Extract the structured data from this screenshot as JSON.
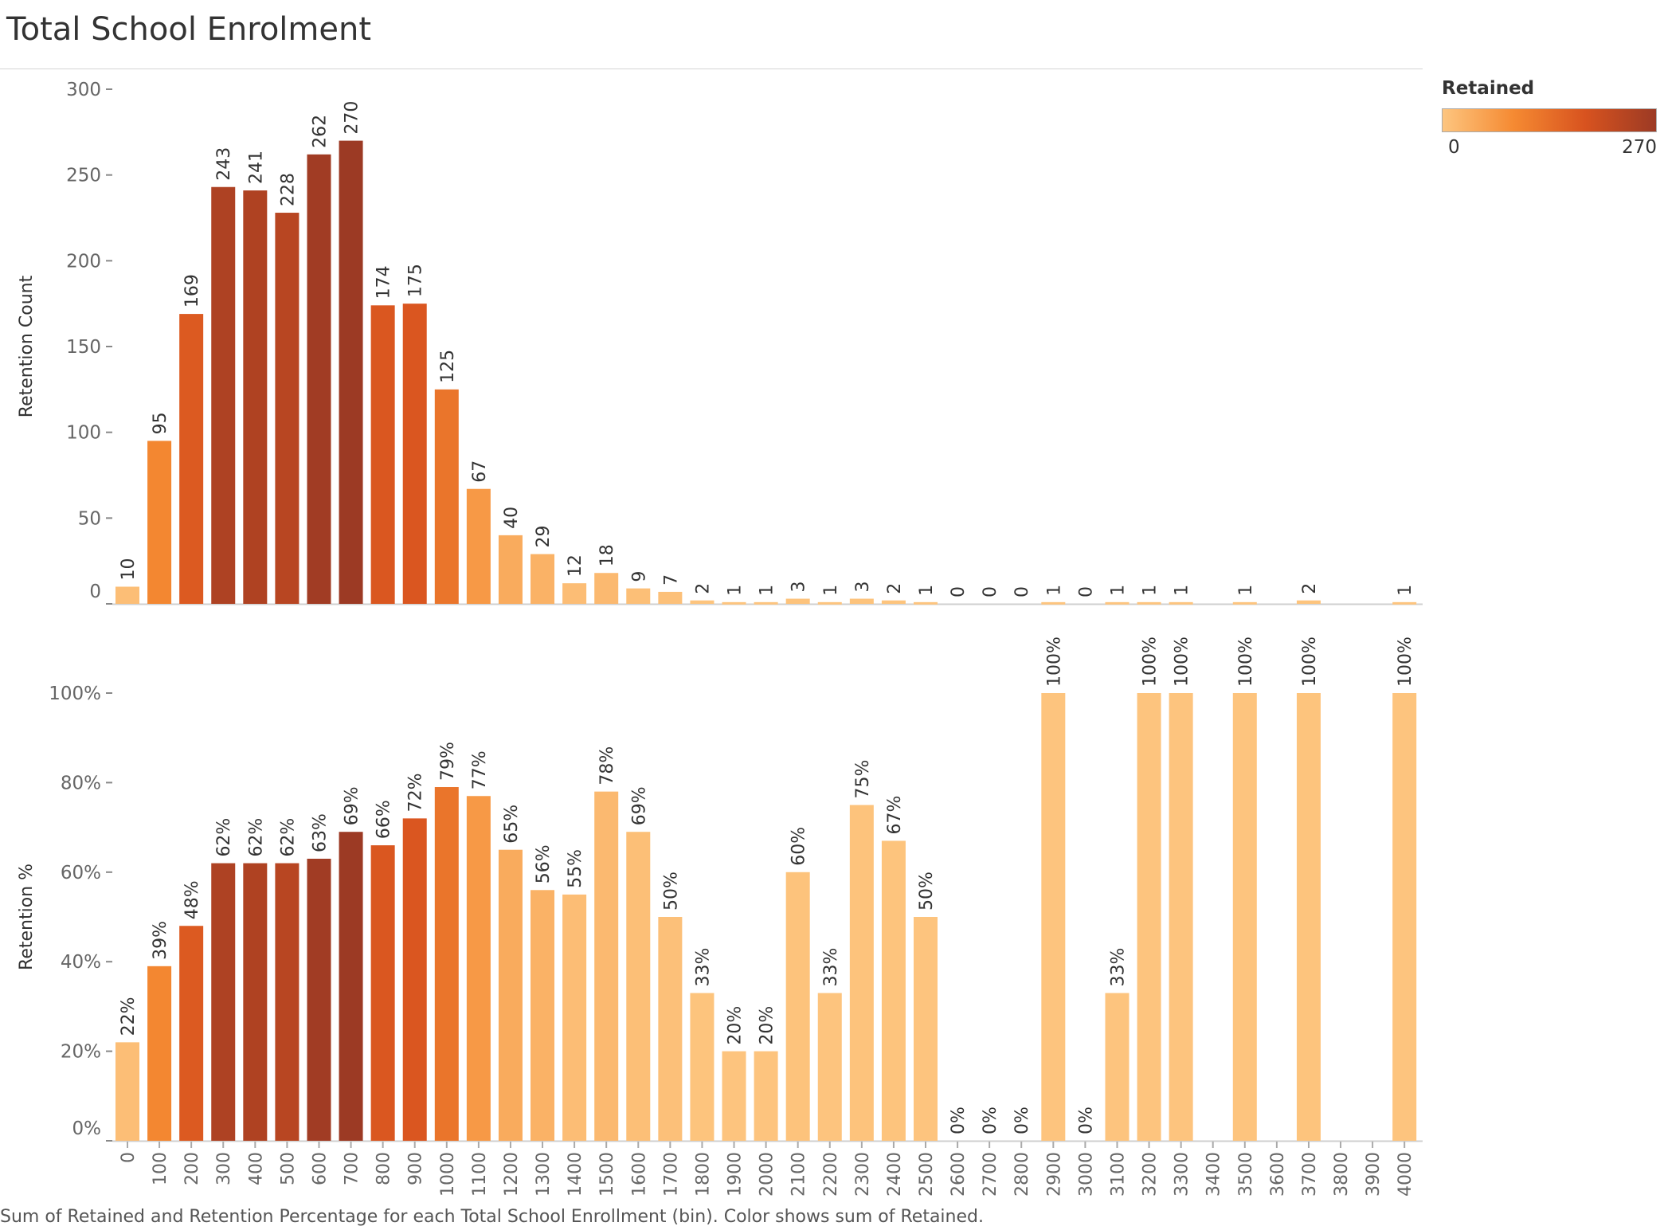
{
  "title": "Total School Enrolment",
  "caption": "Sum of Retained and Retention Percentage for each Total School Enrollment (bin).  Color shows sum of Retained.",
  "legend": {
    "title": "Retained",
    "min_label": "0",
    "max_label": "270",
    "colors": [
      "#fdc57f",
      "#f58a32",
      "#d8531f",
      "#9c3a24"
    ]
  },
  "chart_data": [
    {
      "type": "bar",
      "ylabel": "Retention Count",
      "ylim": [
        0,
        300
      ],
      "yticks": [
        0,
        50,
        100,
        150,
        200,
        250,
        300
      ],
      "ytick_labels": [
        "0",
        "50",
        "100",
        "150",
        "200",
        "250",
        "300"
      ],
      "categories": [
        "0",
        "100",
        "200",
        "300",
        "400",
        "500",
        "600",
        "700",
        "800",
        "900",
        "1000",
        "1100",
        "1200",
        "1300",
        "1400",
        "1500",
        "1600",
        "1700",
        "1800",
        "1900",
        "2000",
        "2100",
        "2200",
        "2300",
        "2400",
        "2500",
        "2600",
        "2700",
        "2800",
        "2900",
        "3000",
        "3100",
        "3200",
        "3300",
        "3400",
        "3500",
        "3600",
        "3700",
        "3800",
        "3900",
        "4000"
      ],
      "values": [
        10,
        95,
        169,
        243,
        241,
        228,
        262,
        270,
        174,
        175,
        125,
        67,
        40,
        29,
        12,
        18,
        9,
        7,
        2,
        1,
        1,
        3,
        1,
        3,
        2,
        1,
        0,
        0,
        0,
        1,
        0,
        1,
        1,
        1,
        null,
        1,
        null,
        2,
        null,
        null,
        1
      ],
      "labels": [
        "10",
        "95",
        "169",
        "243",
        "241",
        "228",
        "262",
        "270",
        "174",
        "175",
        "125",
        "67",
        "40",
        "29",
        "12",
        "18",
        "9",
        "7",
        "2",
        "1",
        "1",
        "3",
        "1",
        "3",
        "2",
        "1",
        "0",
        "0",
        "0",
        "1",
        "0",
        "1",
        "1",
        "1",
        "",
        "1",
        "",
        "2",
        "",
        "",
        "1"
      ]
    },
    {
      "type": "bar",
      "ylabel": "Retention %",
      "ylim": [
        0,
        100
      ],
      "yticks": [
        0,
        20,
        40,
        60,
        80,
        100
      ],
      "ytick_labels": [
        "0%",
        "20%",
        "40%",
        "60%",
        "80%",
        "100%"
      ],
      "xlabel": "",
      "values": [
        22,
        39,
        48,
        62,
        62,
        62,
        63,
        69,
        66,
        72,
        79,
        77,
        65,
        56,
        55,
        78,
        69,
        50,
        33,
        20,
        20,
        60,
        33,
        75,
        67,
        50,
        0,
        0,
        0,
        100,
        0,
        33,
        100,
        100,
        null,
        100,
        null,
        100,
        null,
        null,
        100
      ],
      "labels": [
        "22%",
        "39%",
        "48%",
        "62%",
        "62%",
        "62%",
        "63%",
        "69%",
        "66%",
        "72%",
        "79%",
        "77%",
        "65%",
        "56%",
        "55%",
        "78%",
        "69%",
        "50%",
        "33%",
        "20%",
        "20%",
        "60%",
        "33%",
        "75%",
        "67%",
        "50%",
        "0%",
        "0%",
        "0%",
        "100%",
        "0%",
        "33%",
        "100%",
        "100%",
        "",
        "100%",
        "",
        "100%",
        "",
        "",
        "100%"
      ]
    }
  ]
}
